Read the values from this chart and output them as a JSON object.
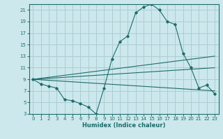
{
  "xlabel": "Humidex (Indice chaleur)",
  "bg_color": "#cce8ec",
  "grid_color": "#aacdd4",
  "line_color": "#1e6b6b",
  "xlim": [
    -0.5,
    23.5
  ],
  "ylim": [
    3,
    22
  ],
  "xticks": [
    0,
    1,
    2,
    3,
    4,
    5,
    6,
    7,
    8,
    9,
    10,
    11,
    12,
    13,
    14,
    15,
    16,
    17,
    18,
    19,
    20,
    21,
    22,
    23
  ],
  "yticks": [
    3,
    5,
    7,
    9,
    11,
    13,
    15,
    17,
    19,
    21
  ],
  "series": [
    {
      "x": [
        0,
        1,
        2,
        3,
        4,
        5,
        6,
        7,
        8,
        9,
        10,
        11,
        12,
        13,
        14,
        15,
        16,
        17,
        18,
        19,
        20,
        21,
        22,
        23
      ],
      "y": [
        9,
        8.2,
        7.8,
        7.5,
        5.5,
        5.3,
        4.8,
        4.2,
        3,
        7.5,
        12.5,
        15.5,
        16.5,
        20.5,
        21.5,
        22,
        21,
        19,
        18.5,
        13.5,
        11,
        7.5,
        8,
        6.5
      ],
      "markers": true
    },
    {
      "x": [
        0,
        23
      ],
      "y": [
        9,
        13
      ],
      "markers": false
    },
    {
      "x": [
        0,
        23
      ],
      "y": [
        9,
        11
      ],
      "markers": false
    },
    {
      "x": [
        0,
        23
      ],
      "y": [
        9,
        7
      ],
      "markers": false
    }
  ]
}
